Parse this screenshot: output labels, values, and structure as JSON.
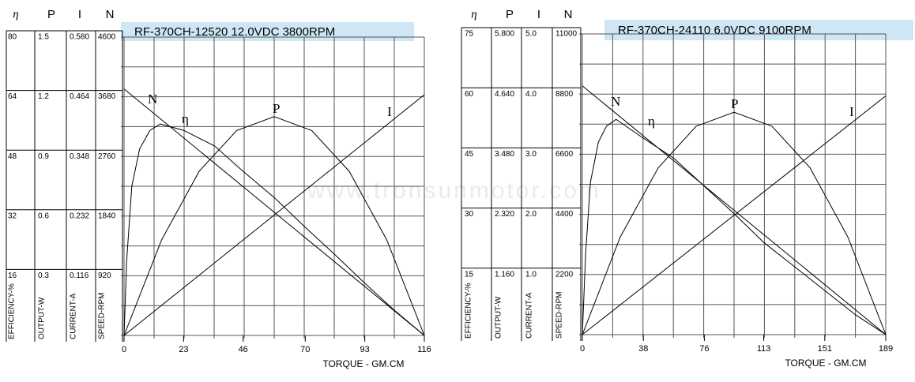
{
  "watermark": "www.tronsunmotor.com",
  "chart_data": [
    {
      "type": "line",
      "title": "RF-370CH-12520  12.0VDC   3800RPM",
      "xlabel": "TORQUE - GM.CM",
      "xlim": [
        0,
        116
      ],
      "xticks": [
        0,
        23,
        46,
        70,
        93,
        116
      ],
      "color": "#000000",
      "axes": [
        {
          "symbol": "η",
          "label": "EFFICIENCY-%",
          "ylim": [
            0,
            80
          ],
          "yticks": [
            16,
            32,
            48,
            64,
            80
          ]
        },
        {
          "symbol": "P",
          "label": "OUTPUT-W",
          "ylim": [
            0,
            1.5
          ],
          "yticks": [
            0.3,
            0.6,
            0.9,
            1.2,
            1.5
          ]
        },
        {
          "symbol": "I",
          "label": "CURRENT-A",
          "ylim": [
            0,
            0.58
          ],
          "yticks": [
            0.116,
            0.232,
            0.348,
            0.464,
            {
              "value": 0.58,
              "label": "0.580"
            }
          ]
        },
        {
          "symbol": "N",
          "label": "SPEED-RPM",
          "ylim": [
            0,
            4600
          ],
          "yticks": [
            920,
            1840,
            2760,
            3680,
            4600
          ]
        }
      ],
      "series": [
        {
          "name": "N",
          "axis": 3,
          "x": [
            0,
            116
          ],
          "values": [
            3800,
            0
          ]
        },
        {
          "name": "η",
          "axis": 0,
          "x": [
            0,
            1,
            3,
            6,
            10,
            14,
            23,
            35,
            46,
            58,
            70,
            81,
            93,
            104,
            116
          ],
          "values": [
            0,
            20,
            40,
            50,
            55,
            56.7,
            55,
            50.8,
            44,
            37,
            29,
            22,
            14,
            7,
            0
          ]
        },
        {
          "name": "P",
          "axis": 1,
          "x": [
            0,
            14.5,
            29,
            43.5,
            58,
            72.5,
            87,
            101.5,
            116
          ],
          "values": [
            0,
            0.48,
            0.825,
            1.03,
            1.1,
            1.03,
            0.825,
            0.48,
            0
          ]
        },
        {
          "name": "I",
          "axis": 2,
          "x": [
            0,
            116
          ],
          "values": [
            0,
            0.468
          ]
        }
      ]
    },
    {
      "type": "line",
      "title": "RF-370CH-24110    6.0VDC    9100RPM",
      "xlabel": "TORQUE - GM.CM",
      "xlim": [
        0,
        189
      ],
      "xticks": [
        0,
        38,
        76,
        113,
        151,
        189
      ],
      "color": "#000000",
      "axes": [
        {
          "symbol": "η",
          "label": "EFFICIENCY-%",
          "ylim": [
            0,
            75
          ],
          "yticks": [
            15,
            30,
            45,
            60,
            75
          ]
        },
        {
          "symbol": "P",
          "label": "OUTPUT-W",
          "ylim": [
            0,
            5.8
          ],
          "yticks": [
            {
              "value": 1.16,
              "label": "1.160"
            },
            {
              "value": 2.32,
              "label": "2.320"
            },
            {
              "value": 3.48,
              "label": "3.480"
            },
            {
              "value": 4.64,
              "label": "4.640"
            },
            {
              "value": 5.8,
              "label": "5.800"
            }
          ]
        },
        {
          "symbol": "I",
          "label": "CURRENT-A",
          "ylim": [
            0,
            5
          ],
          "yticks": [
            {
              "value": 1,
              "label": "1.0"
            },
            {
              "value": 2,
              "label": "2.0"
            },
            {
              "value": 3,
              "label": "3.0"
            },
            {
              "value": 4,
              "label": "4.0"
            },
            {
              "value": 5,
              "label": "5.0"
            }
          ]
        },
        {
          "symbol": "N",
          "label": "SPEED-RPM",
          "ylim": [
            0,
            11000
          ],
          "yticks": [
            2200,
            4400,
            6600,
            8800,
            11000
          ]
        }
      ],
      "series": [
        {
          "name": "N",
          "axis": 3,
          "x": [
            0,
            189
          ],
          "values": [
            9100,
            0
          ]
        },
        {
          "name": "η",
          "axis": 0,
          "x": [
            0,
            2,
            5,
            10,
            15,
            21,
            38,
            57,
            76,
            95,
            113,
            132,
            151,
            170,
            189
          ],
          "values": [
            0,
            20,
            38,
            48,
            52,
            53.7,
            49,
            44,
            37,
            30,
            23,
            17,
            11,
            5,
            0
          ]
        },
        {
          "name": "P",
          "axis": 1,
          "x": [
            0,
            23.6,
            47.3,
            70.9,
            94.5,
            118.1,
            141.8,
            165.4,
            189
          ],
          "values": [
            0,
            1.88,
            3.22,
            4.02,
            4.29,
            4.02,
            3.22,
            1.88,
            0
          ]
        },
        {
          "name": "I",
          "axis": 2,
          "x": [
            0,
            189
          ],
          "values": [
            0,
            3.97
          ]
        }
      ]
    }
  ]
}
